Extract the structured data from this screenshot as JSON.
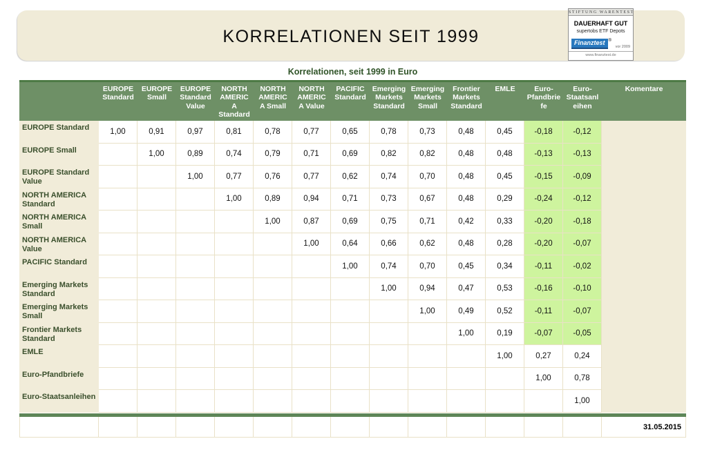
{
  "header": {
    "title": "KORRELATIONEN SEIT 1999",
    "badge": {
      "top_label": "STIFTUNG WARENTEST",
      "rating": "DAUERHAFT GUT",
      "subject": "supertobs ETF Depots",
      "logo_text": "Finanztest",
      "registered_mark": "®",
      "year_note": "vor 2009",
      "url": "www.finanztest.de"
    }
  },
  "subtitle": "Korrelationen, seit 1999 in Euro",
  "table": {
    "columns": [
      "EUROPE\nStandard",
      "EUROPE\nSmall",
      "EUROPE\nStandard\nValue",
      "NORTH\nAMERIC\nA\nStandard",
      "NORTH\nAMERIC\nA Small",
      "NORTH\nAMERIC\nA Value",
      "PACIFIC\nStandard",
      "Emerging\nMarkets\nStandard",
      "Emerging\nMarkets\nSmall",
      "Frontier\nMarkets\nStandard",
      "EMLE",
      "Euro-\nPfandbrie\nfe",
      "Euro-\nStaatsanl\neihen",
      "Komentare"
    ],
    "rows": [
      {
        "label": "EUROPE Standard",
        "values": [
          "1,00",
          "0,91",
          "0,97",
          "0,81",
          "0,78",
          "0,77",
          "0,65",
          "0,78",
          "0,73",
          "0,48",
          "0,45",
          "-0,18",
          "-0,12"
        ]
      },
      {
        "label": "EUROPE Small",
        "values": [
          "",
          "1,00",
          "0,89",
          "0,74",
          "0,79",
          "0,71",
          "0,69",
          "0,82",
          "0,82",
          "0,48",
          "0,48",
          "-0,13",
          "-0,13"
        ]
      },
      {
        "label": "EUROPE Standard Value",
        "values": [
          "",
          "",
          "1,00",
          "0,77",
          "0,76",
          "0,77",
          "0,62",
          "0,74",
          "0,70",
          "0,48",
          "0,45",
          "-0,15",
          "-0,09"
        ]
      },
      {
        "label": "NORTH AMERICA Standard",
        "values": [
          "",
          "",
          "",
          "1,00",
          "0,89",
          "0,94",
          "0,71",
          "0,73",
          "0,67",
          "0,48",
          "0,29",
          "-0,24",
          "-0,12"
        ]
      },
      {
        "label": "NORTH AMERICA Small",
        "values": [
          "",
          "",
          "",
          "",
          "1,00",
          "0,87",
          "0,69",
          "0,75",
          "0,71",
          "0,42",
          "0,33",
          "-0,20",
          "-0,18"
        ]
      },
      {
        "label": "NORTH AMERICA Value",
        "values": [
          "",
          "",
          "",
          "",
          "",
          "1,00",
          "0,64",
          "0,66",
          "0,62",
          "0,48",
          "0,28",
          "-0,20",
          "-0,07"
        ]
      },
      {
        "label": "PACIFIC Standard",
        "values": [
          "",
          "",
          "",
          "",
          "",
          "",
          "1,00",
          "0,74",
          "0,70",
          "0,45",
          "0,34",
          "-0,11",
          "-0,02"
        ]
      },
      {
        "label": "Emerging Markets Standard",
        "values": [
          "",
          "",
          "",
          "",
          "",
          "",
          "",
          "1,00",
          "0,94",
          "0,47",
          "0,53",
          "-0,16",
          "-0,10"
        ]
      },
      {
        "label": "Emerging Markets Small",
        "values": [
          "",
          "",
          "",
          "",
          "",
          "",
          "",
          "",
          "1,00",
          "0,49",
          "0,52",
          "-0,11",
          "-0,07"
        ]
      },
      {
        "label": "Frontier Markets Standard",
        "values": [
          "",
          "",
          "",
          "",
          "",
          "",
          "",
          "",
          "",
          "1,00",
          "0,19",
          "-0,07",
          "-0,05"
        ]
      },
      {
        "label": "EMLE",
        "values": [
          "",
          "",
          "",
          "",
          "",
          "",
          "",
          "",
          "",
          "",
          "1,00",
          "0,27",
          "0,24"
        ]
      },
      {
        "label": "Euro-Pfandbriefe",
        "values": [
          "",
          "",
          "",
          "",
          "",
          "",
          "",
          "",
          "",
          "",
          "",
          "1,00",
          "0,78"
        ]
      },
      {
        "label": "Euro-Staatsanleihen",
        "values": [
          "",
          "",
          "",
          "",
          "",
          "",
          "",
          "",
          "",
          "",
          "",
          "",
          "1,00"
        ]
      }
    ],
    "highlight_col_start": 11,
    "highlight_row_max": 9
  },
  "footer": {
    "date": "31.05.2015"
  },
  "colors": {
    "banner_beige": "#f0ebd8",
    "header_green": "#6e9066",
    "header_border_green": "#4d7a45",
    "separator_green": "#5e8657",
    "label_beige": "#f1ecd9",
    "grid_line": "#e9e1c7",
    "highlight_green": "#cef49e",
    "dark_green_text": "#2f5327",
    "logo_blue": "#2878be"
  }
}
